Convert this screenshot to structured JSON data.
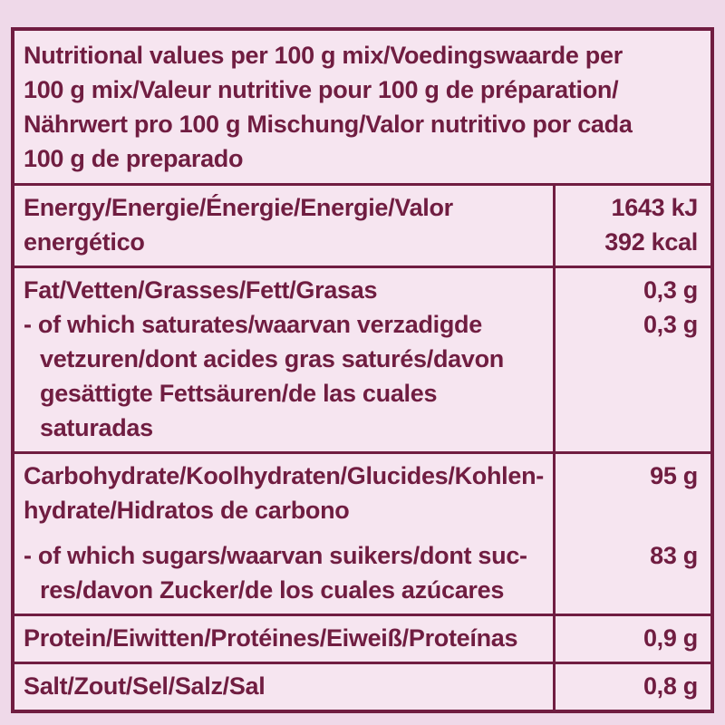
{
  "colors": {
    "background": "#EFD9E9",
    "cell_background": "#F6E5F0",
    "border": "#701D41",
    "text": "#701D41"
  },
  "header": {
    "lines": [
      "Nutritional values per 100 g mix/Voedingswaarde per",
      "100 g mix/Valeur nutritive pour 100 g de préparation/",
      "Nährwert pro 100 g Mischung/Valor nutritivo por cada",
      "100 g de preparado"
    ]
  },
  "rows": {
    "energy": {
      "label_lines": [
        "Energy/Energie/Énergie/Energie/Valor",
        "energético"
      ],
      "values": [
        "1643 kJ",
        "392 kcal"
      ]
    },
    "fat": {
      "label": "Fat/Vetten/Grasses/Fett/Grasas",
      "value": "0,3 g"
    },
    "saturates": {
      "label_lines": [
        "- of which saturates/waarvan verzadigde",
        "vetzuren/dont acides gras saturés/davon",
        "gesättigte Fettsäuren/de las cuales",
        "saturadas"
      ],
      "value": "0,3 g"
    },
    "carbohydrate": {
      "label_lines": [
        "Carbohydrate/Koolhydraten/Glucides/Kohlen-",
        "hydrate/Hidratos de carbono"
      ],
      "value": "95 g"
    },
    "sugars": {
      "label_lines": [
        "- of which sugars/waarvan suikers/dont suc-",
        "res/davon Zucker/de los cuales azúcares"
      ],
      "value": "83 g"
    },
    "protein": {
      "label": "Protein/Eiwitten/Protéines/Eiweiß/Proteínas",
      "value": "0,9 g"
    },
    "salt": {
      "label": "Salt/Zout/Sel/Salz/Sal",
      "value": "0,8 g"
    }
  }
}
